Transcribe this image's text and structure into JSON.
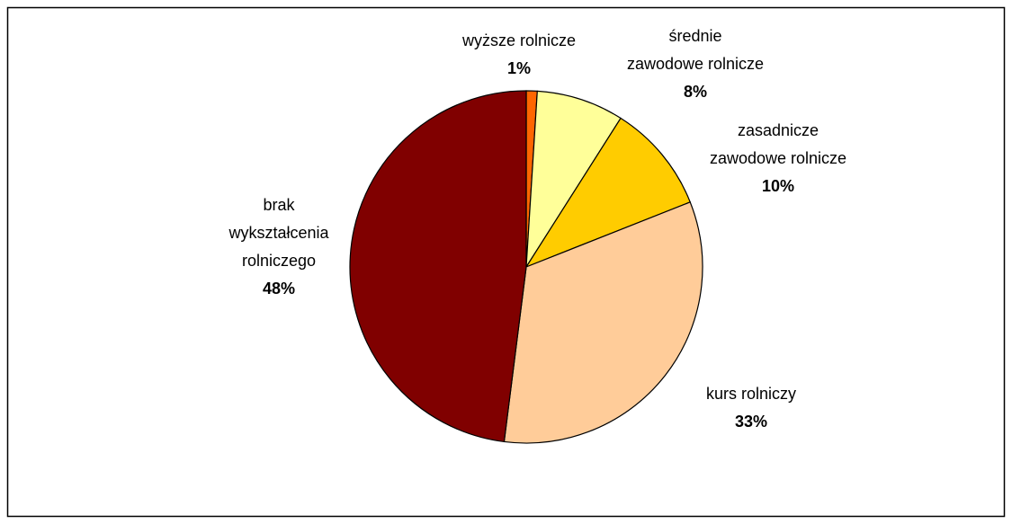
{
  "chart_data": {
    "type": "pie",
    "categories": [
      "wyższe rolnicze",
      "średnie\nzawodowe rolnicze",
      "zasadnicze\nzawodowe rolnicze",
      "kurs rolniczy",
      "brak\nwykształcenia\nrolniczego"
    ],
    "values": [
      1,
      8,
      10,
      33,
      48
    ],
    "value_labels": [
      "1%",
      "8%",
      "10%",
      "33%",
      "48%"
    ],
    "colors": [
      "#FF6600",
      "#FFFF99",
      "#FFCC00",
      "#FFCC99",
      "#800000"
    ]
  }
}
